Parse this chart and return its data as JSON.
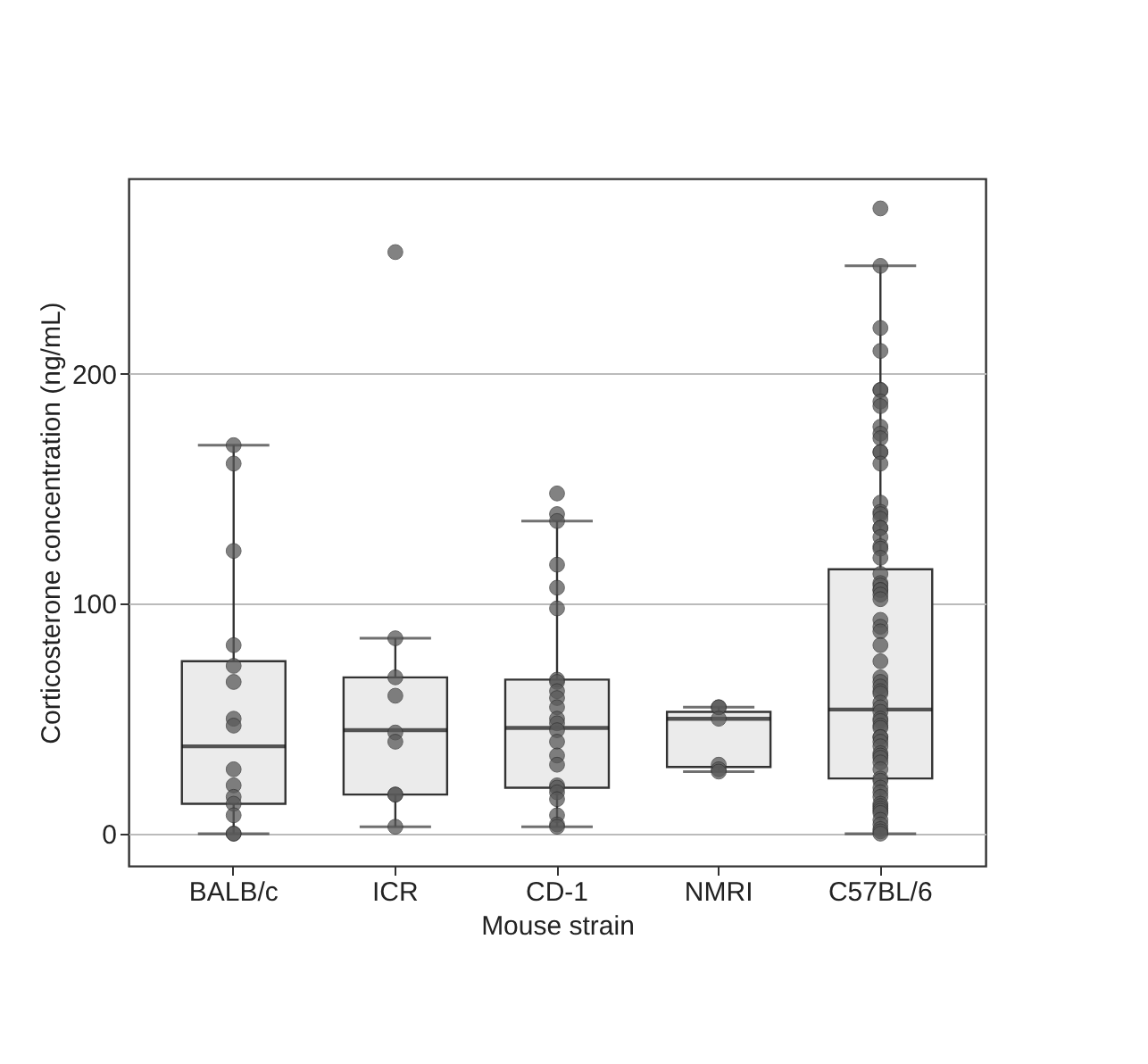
{
  "chart_data": {
    "type": "box",
    "xlabel": "Mouse strain",
    "ylabel": "Corticosterone concentration (ng/mL)",
    "categories": [
      "BALB/c",
      "ICR",
      "CD-1",
      "NMRI",
      "C57BL/6"
    ],
    "boxes": [
      {
        "low": 0,
        "q1": 13,
        "median": 38,
        "q3": 75,
        "high": 169
      },
      {
        "low": 3,
        "q1": 17,
        "median": 45,
        "q3": 68,
        "high": 85
      },
      {
        "low": 3,
        "q1": 20,
        "median": 46,
        "q3": 67,
        "high": 136
      },
      {
        "low": 27,
        "q1": 29,
        "median": 50,
        "q3": 53,
        "high": 55
      },
      {
        "low": 0,
        "q1": 24,
        "median": 54,
        "q3": 115,
        "high": 247
      }
    ],
    "series": [
      {
        "type": "scatter",
        "color": "#595959",
        "x": [
          "BALB/c",
          "BALB/c",
          "BALB/c",
          "BALB/c",
          "BALB/c",
          "BALB/c",
          "BALB/c",
          "BALB/c",
          "BALB/c",
          "BALB/c",
          "BALB/c",
          "BALB/c",
          "BALB/c",
          "BALB/c",
          "BALB/c",
          "ICR",
          "ICR",
          "ICR",
          "ICR",
          "ICR",
          "ICR",
          "ICR",
          "ICR",
          "ICR",
          "CD-1",
          "CD-1",
          "CD-1",
          "CD-1",
          "CD-1",
          "CD-1",
          "CD-1",
          "CD-1",
          "CD-1",
          "CD-1",
          "CD-1",
          "CD-1",
          "CD-1",
          "CD-1",
          "CD-1",
          "CD-1",
          "CD-1",
          "CD-1",
          "CD-1",
          "CD-1",
          "CD-1",
          "CD-1",
          "CD-1",
          "CD-1",
          "NMRI",
          "NMRI",
          "NMRI",
          "NMRI",
          "NMRI",
          "NMRI",
          "C57BL/6",
          "C57BL/6",
          "C57BL/6",
          "C57BL/6",
          "C57BL/6",
          "C57BL/6",
          "C57BL/6",
          "C57BL/6",
          "C57BL/6",
          "C57BL/6",
          "C57BL/6",
          "C57BL/6",
          "C57BL/6",
          "C57BL/6",
          "C57BL/6",
          "C57BL/6",
          "C57BL/6",
          "C57BL/6",
          "C57BL/6",
          "C57BL/6",
          "C57BL/6",
          "C57BL/6",
          "C57BL/6",
          "C57BL/6",
          "C57BL/6",
          "C57BL/6",
          "C57BL/6",
          "C57BL/6",
          "C57BL/6",
          "C57BL/6",
          "C57BL/6",
          "C57BL/6",
          "C57BL/6",
          "C57BL/6",
          "C57BL/6",
          "C57BL/6",
          "C57BL/6",
          "C57BL/6",
          "C57BL/6",
          "C57BL/6",
          "C57BL/6",
          "C57BL/6",
          "C57BL/6",
          "C57BL/6",
          "C57BL/6",
          "C57BL/6",
          "C57BL/6",
          "C57BL/6",
          "C57BL/6",
          "C57BL/6",
          "C57BL/6",
          "C57BL/6",
          "C57BL/6",
          "C57BL/6",
          "C57BL/6",
          "C57BL/6",
          "C57BL/6",
          "C57BL/6",
          "C57BL/6",
          "C57BL/6",
          "C57BL/6",
          "C57BL/6",
          "C57BL/6",
          "C57BL/6",
          "C57BL/6",
          "C57BL/6",
          "C57BL/6",
          "C57BL/6",
          "C57BL/6",
          "C57BL/6",
          "C57BL/6",
          "C57BL/6"
        ],
        "values": [
          169,
          161,
          123,
          82,
          73,
          66,
          50,
          47,
          28,
          21,
          16,
          13,
          8,
          0,
          0,
          253,
          85,
          68,
          60,
          44,
          40,
          17,
          17,
          3,
          148,
          139,
          136,
          117,
          107,
          98,
          67,
          66,
          62,
          59,
          55,
          50,
          48,
          45,
          40,
          34,
          30,
          21,
          20,
          18,
          15,
          8,
          4,
          3,
          55,
          55,
          50,
          30,
          28,
          27,
          272,
          247,
          220,
          210,
          193,
          193,
          188,
          186,
          177,
          174,
          172,
          166,
          166,
          161,
          144,
          140,
          139,
          137,
          133,
          133,
          129,
          125,
          124,
          120,
          113,
          109,
          108,
          106,
          106,
          104,
          102,
          93,
          90,
          88,
          82,
          75,
          68,
          66,
          64,
          62,
          61,
          57,
          55,
          53,
          50,
          49,
          47,
          46,
          42,
          42,
          40,
          38,
          35,
          34,
          33,
          31,
          28,
          24,
          23,
          20,
          18,
          16,
          13,
          12,
          11,
          10,
          9,
          6,
          4,
          2,
          1,
          0
        ]
      }
    ],
    "ylim": [
      -14,
      285
    ],
    "yticks": [
      0,
      100,
      200
    ],
    "grid": "y"
  }
}
